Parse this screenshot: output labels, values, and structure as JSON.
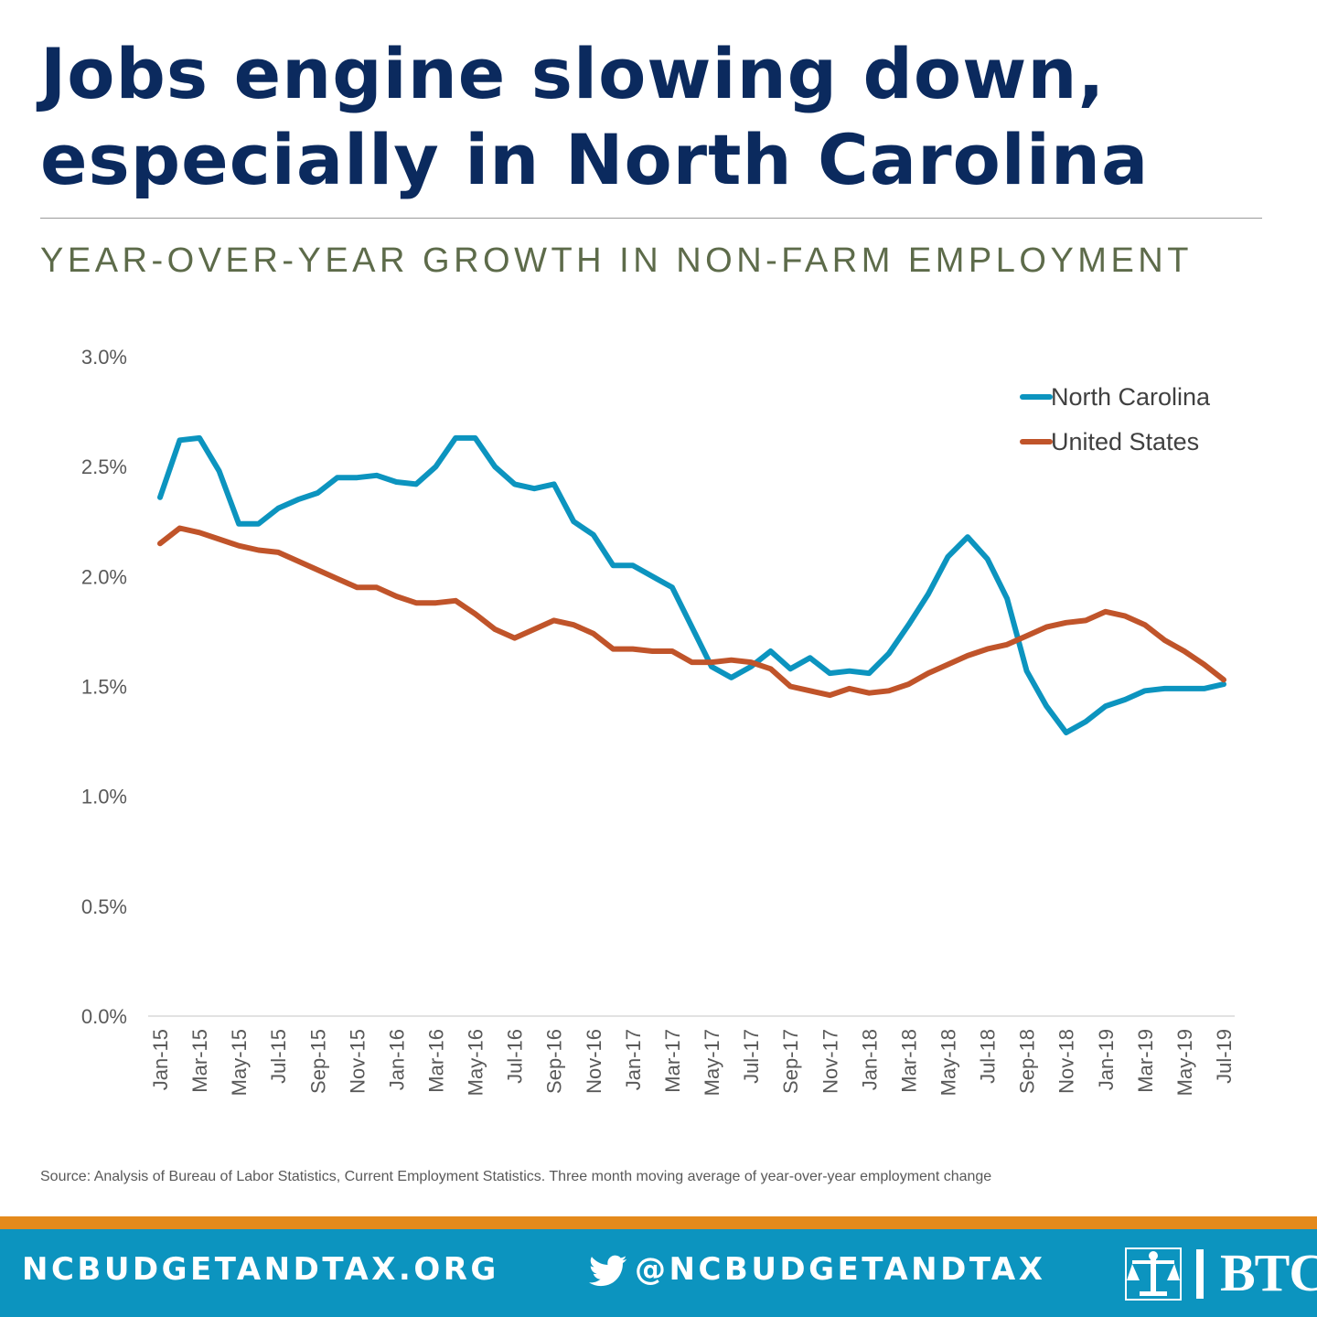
{
  "title_line1": "Jobs engine slowing down,",
  "title_line2": "especially in North Carolina",
  "subtitle": "YEAR-OVER-YEAR GROWTH IN NON-FARM EMPLOYMENT",
  "source": "Source: Analysis of Bureau of Labor Statistics, Current Employment Statistics. Three month moving average of year-over-year employment change",
  "footer": {
    "website": "NCBUDGETANDTAX.ORG",
    "twitter_handle": "@NCBUDGETANDTAX",
    "logo_text": "BTC",
    "bar_color": "#0c94bf",
    "strip_color": "#e48a1c"
  },
  "icons": {
    "twitter": "twitter-bird-icon",
    "logo": "scales-of-justice-icon"
  },
  "chart_data": {
    "type": "line",
    "title": "",
    "xlabel": "",
    "ylabel": "",
    "ylim": [
      0,
      3.0
    ],
    "y_ticks": [
      "0.0%",
      "0.5%",
      "1.0%",
      "1.5%",
      "2.0%",
      "2.5%",
      "3.0%"
    ],
    "y_tick_values": [
      0,
      0.5,
      1.0,
      1.5,
      2.0,
      2.5,
      3.0
    ],
    "grid": false,
    "legend_position": "top-right",
    "x": [
      "Jan-15",
      "Feb-15",
      "Mar-15",
      "Apr-15",
      "May-15",
      "Jun-15",
      "Jul-15",
      "Aug-15",
      "Sep-15",
      "Oct-15",
      "Nov-15",
      "Dec-15",
      "Jan-16",
      "Feb-16",
      "Mar-16",
      "Apr-16",
      "May-16",
      "Jun-16",
      "Jul-16",
      "Aug-16",
      "Sep-16",
      "Oct-16",
      "Nov-16",
      "Dec-16",
      "Jan-17",
      "Feb-17",
      "Mar-17",
      "Apr-17",
      "May-17",
      "Jun-17",
      "Jul-17",
      "Aug-17",
      "Sep-17",
      "Oct-17",
      "Nov-17",
      "Dec-17",
      "Jan-18",
      "Feb-18",
      "Mar-18",
      "Apr-18",
      "May-18",
      "Jun-18",
      "Jul-18",
      "Aug-18",
      "Sep-18",
      "Oct-18",
      "Nov-18",
      "Dec-18",
      "Jan-19",
      "Feb-19",
      "Mar-19",
      "Apr-19",
      "May-19",
      "Jun-19",
      "Jul-19"
    ],
    "x_tick_labels": [
      "Jan-15",
      "Mar-15",
      "May-15",
      "Jul-15",
      "Sep-15",
      "Nov-15",
      "Jan-16",
      "Mar-16",
      "May-16",
      "Jul-16",
      "Sep-16",
      "Nov-16",
      "Jan-17",
      "Mar-17",
      "May-17",
      "Jul-17",
      "Sep-17",
      "Nov-17",
      "Jan-18",
      "Mar-18",
      "May-18",
      "Jul-18",
      "Sep-18",
      "Nov-18",
      "Jan-19",
      "Mar-19",
      "May-19",
      "Jul-19"
    ],
    "series": [
      {
        "name": "North Carolina",
        "color": "#0c94bf",
        "values": [
          2.36,
          2.62,
          2.63,
          2.48,
          2.24,
          2.24,
          2.31,
          2.35,
          2.38,
          2.45,
          2.45,
          2.46,
          2.43,
          2.42,
          2.5,
          2.63,
          2.63,
          2.5,
          2.42,
          2.4,
          2.42,
          2.25,
          2.19,
          2.05,
          2.05,
          2.0,
          1.95,
          1.77,
          1.59,
          1.54,
          1.59,
          1.66,
          1.58,
          1.63,
          1.56,
          1.57,
          1.56,
          1.65,
          1.78,
          1.92,
          2.09,
          2.18,
          2.08,
          1.9,
          1.57,
          1.41,
          1.29,
          1.34,
          1.41,
          1.44,
          1.48,
          1.49,
          1.49,
          1.49,
          1.51
        ]
      },
      {
        "name": "United States",
        "color": "#c0542a",
        "values": [
          2.15,
          2.22,
          2.2,
          2.17,
          2.14,
          2.12,
          2.11,
          2.07,
          2.03,
          1.99,
          1.95,
          1.95,
          1.91,
          1.88,
          1.88,
          1.89,
          1.83,
          1.76,
          1.72,
          1.76,
          1.8,
          1.78,
          1.74,
          1.67,
          1.67,
          1.66,
          1.66,
          1.61,
          1.61,
          1.62,
          1.61,
          1.58,
          1.5,
          1.48,
          1.46,
          1.49,
          1.47,
          1.48,
          1.51,
          1.56,
          1.6,
          1.64,
          1.67,
          1.69,
          1.73,
          1.77,
          1.79,
          1.8,
          1.84,
          1.82,
          1.78,
          1.71,
          1.66,
          1.6,
          1.53
        ]
      }
    ]
  }
}
